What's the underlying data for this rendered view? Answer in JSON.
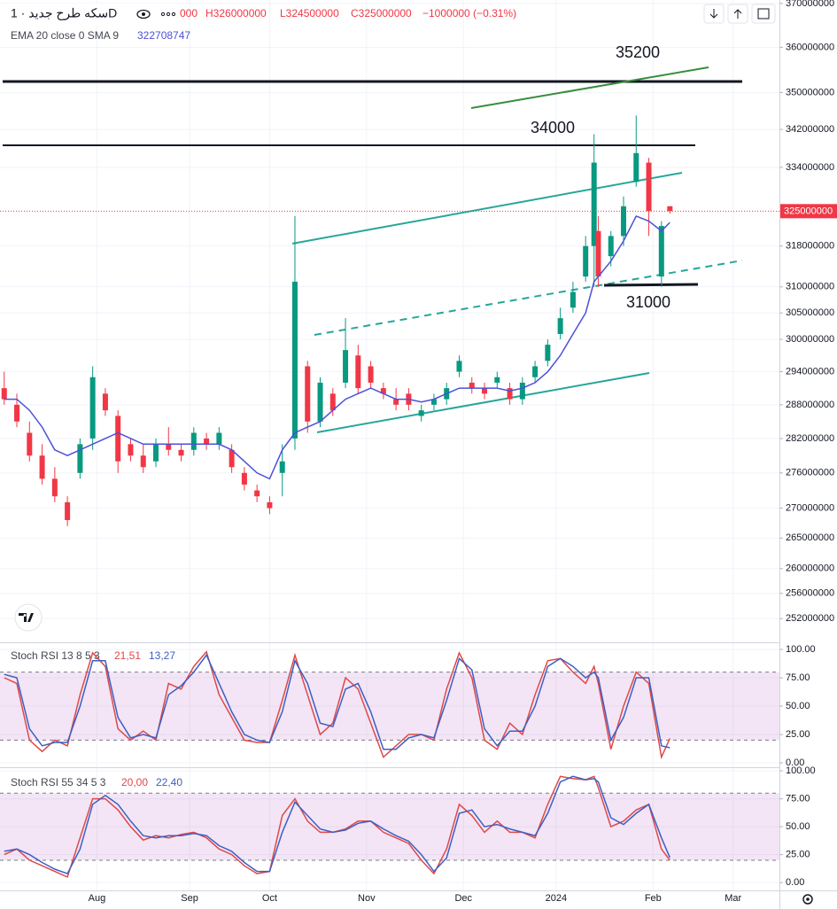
{
  "header": {
    "symbol": "سکه طرح جدید · 1D",
    "ohlc": [
      "000",
      "H326000000",
      "L324500000",
      "C325000000",
      "−1000000 (−0.31%)"
    ]
  },
  "chart_data": [
    {
      "type": "candlestick",
      "x": [
        0,
        3,
        6,
        9,
        12,
        15,
        18,
        21,
        24,
        27,
        30,
        33,
        36,
        39,
        42,
        45,
        48,
        51,
        54,
        57,
        60,
        63,
        66,
        69,
        72,
        75,
        78,
        81,
        84,
        87,
        90,
        93,
        96,
        99,
        102,
        105,
        108,
        111,
        114,
        117,
        120,
        123,
        126,
        129,
        132,
        135,
        138,
        140,
        141,
        144,
        147,
        150,
        153,
        156,
        158
      ],
      "open": [
        291000000,
        288000000,
        283000000,
        279000000,
        275000000,
        271000000,
        276000000,
        282000000,
        290000000,
        286000000,
        281000000,
        279000000,
        278000000,
        281000000,
        280000000,
        280000000,
        282000000,
        281000000,
        280000000,
        276000000,
        273000000,
        271000000,
        276000000,
        282000000,
        295000000,
        285000000,
        290000000,
        292000000,
        297000000,
        295000000,
        291000000,
        289000000,
        290000000,
        286000000,
        288000000,
        289000000,
        294000000,
        292000000,
        291000000,
        292000000,
        291000000,
        289000000,
        293000000,
        296000000,
        301000000,
        306000000,
        312000000,
        318000000,
        321000000,
        316000000,
        320000000,
        331000000,
        335000000,
        312000000,
        326000000
      ],
      "high": [
        294000000,
        290000000,
        285000000,
        281000000,
        277000000,
        272000000,
        282000000,
        295000000,
        291000000,
        287000000,
        282000000,
        281000000,
        282000000,
        284000000,
        281000000,
        284000000,
        283000000,
        284000000,
        281000000,
        277000000,
        274000000,
        272000000,
        281000000,
        324000000,
        296000000,
        293000000,
        291000000,
        304000000,
        299000000,
        296000000,
        292000000,
        291000000,
        291000000,
        288000000,
        290000000,
        292000000,
        297000000,
        293000000,
        292000000,
        294000000,
        292000000,
        293000000,
        296000000,
        300000000,
        306000000,
        311000000,
        320000000,
        341000000,
        324000000,
        321000000,
        328000000,
        345000000,
        336000000,
        323000000,
        326000000
      ],
      "low": [
        288000000,
        284000000,
        278000000,
        274000000,
        271000000,
        267000000,
        275000000,
        280000000,
        286000000,
        276000000,
        278000000,
        276000000,
        277000000,
        279000000,
        278000000,
        279000000,
        280000000,
        280000000,
        276000000,
        273000000,
        271000000,
        269000000,
        272000000,
        280000000,
        283000000,
        284000000,
        286000000,
        291000000,
        290000000,
        291000000,
        289000000,
        287000000,
        287000000,
        285000000,
        287000000,
        288000000,
        293000000,
        290000000,
        289000000,
        291000000,
        288000000,
        288000000,
        292000000,
        295000000,
        300000000,
        305000000,
        311000000,
        310000000,
        310000000,
        314000000,
        318000000,
        330000000,
        320000000,
        310000000,
        324500000
      ],
      "close": [
        289000000,
        285000000,
        279000000,
        275000000,
        272000000,
        268000000,
        281000000,
        293000000,
        287000000,
        278000000,
        279000000,
        277000000,
        281000000,
        280000000,
        279000000,
        283000000,
        281000000,
        283000000,
        277000000,
        274000000,
        272000000,
        270000000,
        278000000,
        311000000,
        285000000,
        292000000,
        287000000,
        298000000,
        291000000,
        292000000,
        290000000,
        288000000,
        288000000,
        287000000,
        289000000,
        291000000,
        296000000,
        291000000,
        290000000,
        293000000,
        289000000,
        292000000,
        295000000,
        299000000,
        304000000,
        309000000,
        318000000,
        335000000,
        312000000,
        320000000,
        326000000,
        337000000,
        325000000,
        322000000,
        325000000
      ],
      "up_color": "#089981",
      "down_color": "#f23645",
      "series": [
        {
          "name": "EMA 20 close 0 SMA 9",
          "color": "#4c50d8",
          "value_label": "322708747",
          "values": [
            289000000,
            289000000,
            287000000,
            284000000,
            280000000,
            279000000,
            280000000,
            281000000,
            282000000,
            283000000,
            282000000,
            281000000,
            281000000,
            281000000,
            281000000,
            281000000,
            281000000,
            281000000,
            280000000,
            278000000,
            276000000,
            275000000,
            280000000,
            283000000,
            284000000,
            285000000,
            287000000,
            289000000,
            290000000,
            291000000,
            290000000,
            289000000,
            289000000,
            288500000,
            289000000,
            290000000,
            291000000,
            291000000,
            291000000,
            291000000,
            290500000,
            291000000,
            292000000,
            294000000,
            297000000,
            301000000,
            305000000,
            311000000,
            312000000,
            315000000,
            319000000,
            324000000,
            323000000,
            321000000,
            322708747
          ]
        }
      ],
      "ylim": [
        248300000,
        370800000
      ],
      "log_scale": true,
      "yticks": [
        370000000,
        360000000,
        350000000,
        342000000,
        334000000,
        318000000,
        310000000,
        305000000,
        300000000,
        294000000,
        288000000,
        282000000,
        276000000,
        270000000,
        265000000,
        260000000,
        256000000,
        252000000
      ],
      "xlim": [
        -1,
        184
      ],
      "xticks": [
        {
          "value": 22,
          "label": "Aug"
        },
        {
          "value": 44,
          "label": "Sep"
        },
        {
          "value": 63,
          "label": "Oct"
        },
        {
          "value": 86,
          "label": "Nov"
        },
        {
          "value": 109,
          "label": "Dec"
        },
        {
          "value": 131,
          "label": "2024"
        },
        {
          "value": 154,
          "label": "Feb"
        },
        {
          "value": 173,
          "label": "Mar"
        }
      ],
      "annotations": [
        "35200",
        "34000",
        "31000"
      ]
    },
    {
      "type": "line",
      "title": "Stoch RSI 13 8 5 3",
      "x": [
        0,
        3,
        6,
        9,
        12,
        15,
        18,
        21,
        24,
        27,
        30,
        33,
        36,
        39,
        42,
        45,
        48,
        51,
        54,
        57,
        60,
        63,
        66,
        69,
        72,
        75,
        78,
        81,
        84,
        87,
        90,
        93,
        96,
        99,
        102,
        105,
        108,
        111,
        114,
        117,
        120,
        123,
        126,
        129,
        132,
        135,
        138,
        140,
        141,
        144,
        147,
        150,
        153,
        156,
        158
      ],
      "series": [
        {
          "color": "#e04848",
          "value_label": "21,51",
          "values": [
            75,
            70,
            20,
            10,
            20,
            15,
            60,
            97,
            85,
            30,
            20,
            28,
            20,
            70,
            65,
            85,
            98,
            60,
            40,
            20,
            18,
            18,
            55,
            95,
            60,
            25,
            35,
            75,
            65,
            35,
            5,
            15,
            25,
            25,
            20,
            65,
            97,
            75,
            20,
            12,
            35,
            25,
            60,
            90,
            92,
            80,
            70,
            85,
            70,
            12,
            50,
            80,
            70,
            5,
            21.51
          ]
        },
        {
          "color": "#3d5fc4",
          "value_label": "13,27",
          "values": [
            78,
            75,
            30,
            15,
            18,
            18,
            50,
            90,
            90,
            40,
            22,
            25,
            22,
            60,
            68,
            80,
            95,
            70,
            45,
            25,
            20,
            18,
            45,
            90,
            70,
            35,
            32,
            65,
            70,
            45,
            12,
            12,
            22,
            25,
            22,
            55,
            92,
            82,
            30,
            15,
            28,
            28,
            50,
            85,
            92,
            85,
            75,
            80,
            75,
            20,
            40,
            75,
            75,
            15,
            13.27
          ]
        }
      ],
      "ylim": [
        -3.9,
        105.5
      ],
      "yticks": [
        {
          "value": 100,
          "label": "100.00"
        },
        {
          "value": 75,
          "label": "75.00"
        },
        {
          "value": 50,
          "label": "50.00"
        },
        {
          "value": 25,
          "label": "25.00"
        },
        {
          "value": 0,
          "label": "0.00"
        }
      ],
      "bands": [
        20,
        80
      ]
    },
    {
      "type": "line",
      "title": "Stoch RSI 55 34 5 3",
      "x": [
        0,
        3,
        6,
        9,
        12,
        15,
        18,
        21,
        24,
        27,
        30,
        33,
        36,
        39,
        42,
        45,
        48,
        51,
        54,
        57,
        60,
        63,
        66,
        69,
        72,
        75,
        78,
        81,
        84,
        87,
        90,
        93,
        96,
        99,
        102,
        105,
        108,
        111,
        114,
        117,
        120,
        123,
        126,
        129,
        132,
        135,
        138,
        140,
        141,
        144,
        147,
        150,
        153,
        156,
        158
      ],
      "series": [
        {
          "color": "#e04848",
          "value_label": "20,00",
          "values": [
            25,
            30,
            20,
            15,
            10,
            5,
            40,
            75,
            75,
            65,
            50,
            38,
            42,
            40,
            43,
            45,
            40,
            30,
            25,
            15,
            8,
            10,
            60,
            75,
            55,
            45,
            45,
            48,
            55,
            55,
            45,
            40,
            35,
            20,
            8,
            30,
            70,
            60,
            45,
            55,
            45,
            45,
            40,
            70,
            95,
            93,
            92,
            95,
            85,
            50,
            55,
            65,
            70,
            30,
            20
          ]
        },
        {
          "color": "#3d5fc4",
          "value_label": "22,40",
          "values": [
            28,
            30,
            25,
            18,
            12,
            8,
            30,
            70,
            78,
            70,
            55,
            42,
            40,
            42,
            42,
            44,
            42,
            33,
            28,
            18,
            10,
            10,
            45,
            72,
            60,
            48,
            45,
            47,
            53,
            55,
            48,
            42,
            37,
            25,
            10,
            22,
            62,
            65,
            50,
            52,
            48,
            45,
            42,
            62,
            90,
            95,
            92,
            93,
            90,
            58,
            52,
            62,
            70,
            40,
            22.4
          ]
        }
      ],
      "ylim": [
        -7,
        102.4
      ],
      "yticks": [
        {
          "value": 100,
          "label": "100.00"
        },
        {
          "value": 75,
          "label": "75.00"
        },
        {
          "value": 50,
          "label": "50.00"
        },
        {
          "value": 25,
          "label": "25.00"
        },
        {
          "value": 0,
          "label": "0.00"
        }
      ],
      "bands": [
        20,
        80
      ]
    }
  ]
}
